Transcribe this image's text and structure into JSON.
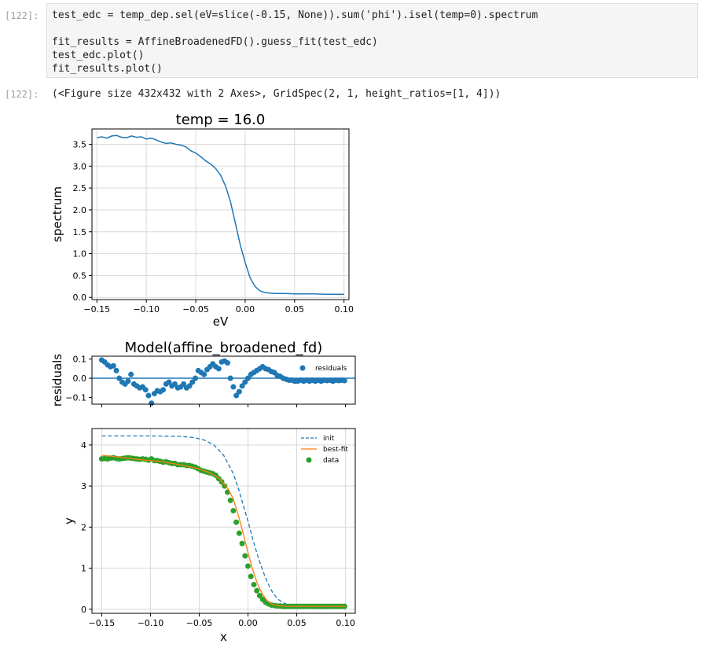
{
  "cells": [
    {
      "in_prompt": "[122]:",
      "code": {
        "line1": "test_edc = temp_dep.sel(eV=slice(-0.15, None)).sum('phi').isel(temp=0).spectrum",
        "line2": "fit_results = AffineBroadenedFD().guess_fit(test_edc)",
        "line3": "test_edc.plot()",
        "line4": "fit_results.plot()"
      },
      "out_prompt": "[122]:",
      "output_text": "(<Figure size 432x432 with 2 Axes>, GridSpec(2, 1, height_ratios=[1, 4]))"
    }
  ],
  "colors": {
    "blue": "#1f77b4",
    "orange": "#ff7f0e",
    "green": "#2ca02c"
  },
  "chart_data": [
    {
      "type": "line",
      "title": "temp = 16.0",
      "xlabel": "eV",
      "ylabel": "spectrum",
      "xlim": [
        -0.155,
        0.105
      ],
      "ylim": [
        -0.05,
        3.85
      ],
      "xticks": [
        "−0.15",
        "−0.10",
        "−0.05",
        "0.00",
        "0.05",
        "0.10"
      ],
      "yticks": [
        "0.0",
        "0.5",
        "1.0",
        "1.5",
        "2.0",
        "2.5",
        "3.0",
        "3.5"
      ],
      "grid": true,
      "series": [
        {
          "x": [
            -0.15,
            -0.145,
            -0.14,
            -0.135,
            -0.13,
            -0.125,
            -0.12,
            -0.115,
            -0.11,
            -0.105,
            -0.1,
            -0.095,
            -0.09,
            -0.085,
            -0.08,
            -0.075,
            -0.07,
            -0.065,
            -0.06,
            -0.055,
            -0.05,
            -0.045,
            -0.04,
            -0.035,
            -0.03,
            -0.025,
            -0.02,
            -0.015,
            -0.01,
            -0.005,
            0.0,
            0.005,
            0.01,
            0.015,
            0.02,
            0.025,
            0.03,
            0.04,
            0.05,
            0.06,
            0.07,
            0.08,
            0.09,
            0.1
          ],
          "values": [
            3.65,
            3.67,
            3.64,
            3.69,
            3.7,
            3.66,
            3.65,
            3.69,
            3.66,
            3.67,
            3.62,
            3.64,
            3.6,
            3.55,
            3.52,
            3.53,
            3.5,
            3.48,
            3.44,
            3.35,
            3.3,
            3.22,
            3.12,
            3.05,
            2.95,
            2.8,
            2.55,
            2.2,
            1.7,
            1.2,
            0.8,
            0.45,
            0.25,
            0.15,
            0.11,
            0.1,
            0.09,
            0.09,
            0.08,
            0.08,
            0.08,
            0.07,
            0.07,
            0.07
          ]
        }
      ]
    },
    {
      "type": "scatter",
      "title": "Model(affine_broadened_fd)",
      "ylabel": "residuals",
      "xlim": [
        -0.16,
        0.11
      ],
      "ylim": [
        -0.135,
        0.115
      ],
      "yticks": [
        "0.1",
        "0.0",
        "−0.1"
      ],
      "legend": "upper-right",
      "series": [
        {
          "name": "residuals",
          "x": [
            -0.15,
            -0.147,
            -0.144,
            -0.141,
            -0.138,
            -0.135,
            -0.132,
            -0.129,
            -0.126,
            -0.123,
            -0.12,
            -0.117,
            -0.114,
            -0.111,
            -0.108,
            -0.105,
            -0.102,
            -0.099,
            -0.096,
            -0.093,
            -0.09,
            -0.087,
            -0.084,
            -0.081,
            -0.078,
            -0.075,
            -0.072,
            -0.069,
            -0.066,
            -0.063,
            -0.06,
            -0.057,
            -0.054,
            -0.051,
            -0.048,
            -0.045,
            -0.042,
            -0.039,
            -0.036,
            -0.033,
            -0.03,
            -0.027,
            -0.024,
            -0.021,
            -0.018,
            -0.015,
            -0.012,
            -0.009,
            -0.006,
            -0.003,
            0.0,
            0.003,
            0.006,
            0.009,
            0.012,
            0.015,
            0.018,
            0.021,
            0.024,
            0.027,
            0.03,
            0.033,
            0.036,
            0.039,
            0.042,
            0.045,
            0.048,
            0.051,
            0.054,
            0.057,
            0.06,
            0.063,
            0.066,
            0.069,
            0.072,
            0.075,
            0.078,
            0.081,
            0.084,
            0.087,
            0.09,
            0.093,
            0.096,
            0.099
          ],
          "values": [
            0.095,
            0.085,
            0.07,
            0.06,
            0.065,
            0.04,
            0.0,
            -0.02,
            -0.03,
            -0.015,
            0.02,
            -0.03,
            -0.04,
            -0.05,
            -0.045,
            -0.06,
            -0.09,
            -0.13,
            -0.08,
            -0.065,
            -0.07,
            -0.06,
            -0.03,
            -0.02,
            -0.04,
            -0.03,
            -0.05,
            -0.045,
            -0.03,
            -0.05,
            -0.04,
            -0.02,
            0.0,
            0.04,
            0.03,
            0.02,
            0.045,
            0.06,
            0.075,
            0.06,
            0.05,
            0.085,
            0.09,
            0.08,
            0.0,
            -0.045,
            -0.09,
            -0.07,
            -0.04,
            -0.02,
            0.0,
            0.02,
            0.03,
            0.04,
            0.05,
            0.06,
            0.05,
            0.045,
            0.035,
            0.03,
            0.015,
            0.01,
            0.0,
            -0.005,
            -0.01,
            -0.01,
            -0.015,
            -0.015,
            -0.01,
            -0.015,
            -0.01,
            -0.015,
            -0.01,
            -0.015,
            -0.01,
            -0.015,
            -0.01,
            -0.012,
            -0.01,
            -0.015,
            -0.01,
            -0.012,
            -0.01,
            -0.012
          ]
        }
      ]
    },
    {
      "type": "line",
      "xlabel": "x",
      "ylabel": "y",
      "xlim": [
        -0.16,
        0.11
      ],
      "ylim": [
        -0.1,
        4.4
      ],
      "xticks": [
        "−0.15",
        "−0.10",
        "−0.05",
        "0.00",
        "0.05",
        "0.10"
      ],
      "yticks": [
        "0",
        "1",
        "2",
        "3",
        "4"
      ],
      "grid": true,
      "legend": "upper-right",
      "series": [
        {
          "name": "init",
          "style": "dashed",
          "color": "#1f77b4",
          "x": [
            -0.15,
            -0.1,
            -0.07,
            -0.055,
            -0.045,
            -0.035,
            -0.025,
            -0.015,
            -0.01,
            -0.005,
            0.0,
            0.005,
            0.01,
            0.015,
            0.02,
            0.025,
            0.03,
            0.035,
            0.04,
            0.05,
            0.06,
            0.08,
            0.1
          ],
          "values": [
            4.22,
            4.22,
            4.21,
            4.18,
            4.12,
            4.0,
            3.75,
            3.3,
            2.95,
            2.55,
            2.15,
            1.7,
            1.3,
            0.95,
            0.65,
            0.42,
            0.26,
            0.17,
            0.12,
            0.08,
            0.07,
            0.07,
            0.07
          ]
        },
        {
          "name": "best-fit",
          "style": "solid",
          "color": "#ff7f0e",
          "x": [
            -0.15,
            -0.13,
            -0.11,
            -0.09,
            -0.07,
            -0.05,
            -0.04,
            -0.03,
            -0.02,
            -0.015,
            -0.01,
            -0.005,
            0.0,
            0.005,
            0.01,
            0.015,
            0.02,
            0.025,
            0.03,
            0.04,
            0.06,
            0.1
          ],
          "values": [
            3.75,
            3.7,
            3.64,
            3.6,
            3.52,
            3.42,
            3.33,
            3.2,
            2.92,
            2.68,
            2.3,
            1.85,
            1.38,
            0.95,
            0.6,
            0.36,
            0.2,
            0.12,
            0.09,
            0.07,
            0.07,
            0.07
          ]
        },
        {
          "name": "data",
          "style": "points",
          "color": "#2ca02c",
          "x": [
            -0.15,
            -0.147,
            -0.144,
            -0.141,
            -0.138,
            -0.135,
            -0.132,
            -0.129,
            -0.126,
            -0.123,
            -0.12,
            -0.117,
            -0.114,
            -0.111,
            -0.108,
            -0.105,
            -0.102,
            -0.099,
            -0.096,
            -0.093,
            -0.09,
            -0.087,
            -0.084,
            -0.081,
            -0.078,
            -0.075,
            -0.072,
            -0.069,
            -0.066,
            -0.063,
            -0.06,
            -0.057,
            -0.054,
            -0.051,
            -0.048,
            -0.045,
            -0.042,
            -0.039,
            -0.036,
            -0.033,
            -0.03,
            -0.027,
            -0.024,
            -0.021,
            -0.018,
            -0.015,
            -0.012,
            -0.009,
            -0.006,
            -0.003,
            0.0,
            0.003,
            0.006,
            0.009,
            0.012,
            0.015,
            0.018,
            0.021,
            0.024,
            0.027,
            0.03,
            0.033,
            0.036,
            0.039,
            0.042,
            0.045,
            0.048,
            0.051,
            0.054,
            0.057,
            0.06,
            0.063,
            0.066,
            0.069,
            0.072,
            0.075,
            0.078,
            0.081,
            0.084,
            0.087,
            0.09,
            0.093,
            0.096,
            0.099
          ],
          "values": [
            3.66,
            3.67,
            3.66,
            3.68,
            3.69,
            3.67,
            3.66,
            3.67,
            3.68,
            3.69,
            3.68,
            3.67,
            3.66,
            3.65,
            3.66,
            3.65,
            3.63,
            3.66,
            3.62,
            3.62,
            3.6,
            3.58,
            3.59,
            3.57,
            3.55,
            3.55,
            3.52,
            3.52,
            3.52,
            3.5,
            3.5,
            3.48,
            3.46,
            3.42,
            3.38,
            3.36,
            3.34,
            3.32,
            3.3,
            3.26,
            3.18,
            3.1,
            3.0,
            2.85,
            2.65,
            2.4,
            2.12,
            1.85,
            1.6,
            1.3,
            1.05,
            0.8,
            0.6,
            0.45,
            0.33,
            0.24,
            0.17,
            0.13,
            0.1,
            0.09,
            0.08,
            0.08,
            0.07,
            0.07,
            0.07,
            0.07,
            0.07,
            0.07,
            0.07,
            0.07,
            0.07,
            0.07,
            0.07,
            0.07,
            0.07,
            0.07,
            0.07,
            0.07,
            0.07,
            0.07,
            0.07,
            0.07,
            0.07,
            0.07
          ]
        }
      ]
    }
  ]
}
